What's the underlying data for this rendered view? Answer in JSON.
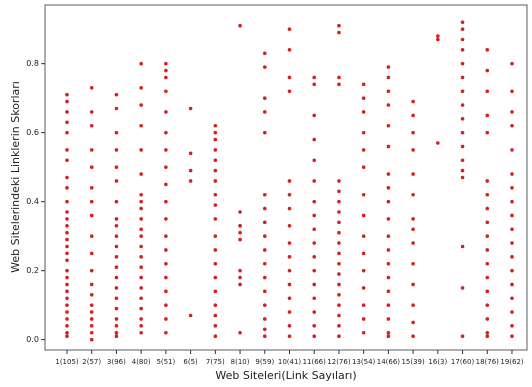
{
  "chart_data": {
    "type": "strip",
    "x_label": "Web Siteleri(Link Sayıları)",
    "y_label": "Web Sitelerindeki Linklerin Skorları",
    "color": "#d42020",
    "categories": [
      "1(105)",
      "2(57)",
      "3(96)",
      "4(80)",
      "5(51)",
      "6(5)",
      "7(75)",
      "8(10)",
      "9(59)",
      "10(41)",
      "11(66)",
      "12(76)",
      "13(54)",
      "14(66)",
      "15(39)",
      "16(3)",
      "17(60)",
      "18(76)",
      "19(62)"
    ],
    "values": [
      [
        0.71,
        0.69,
        0.66,
        0.63,
        0.6,
        0.55,
        0.52,
        0.47,
        0.44,
        0.4,
        0.37,
        0.35,
        0.33,
        0.31,
        0.29,
        0.27,
        0.25,
        0.23,
        0.2,
        0.18,
        0.16,
        0.14,
        0.12,
        0.1,
        0.08,
        0.06,
        0.04,
        0.02,
        0.01
      ],
      [
        0.73,
        0.66,
        0.62,
        0.55,
        0.5,
        0.44,
        0.4,
        0.36,
        0.3,
        0.25,
        0.2,
        0.16,
        0.13,
        0.1,
        0.08,
        0.06,
        0.04,
        0.02,
        0.0
      ],
      [
        0.71,
        0.67,
        0.6,
        0.55,
        0.5,
        0.46,
        0.4,
        0.35,
        0.33,
        0.3,
        0.27,
        0.24,
        0.21,
        0.18,
        0.15,
        0.12,
        0.09,
        0.06,
        0.04,
        0.02,
        0.01
      ],
      [
        0.8,
        0.73,
        0.68,
        0.62,
        0.55,
        0.48,
        0.42,
        0.4,
        0.38,
        0.35,
        0.32,
        0.3,
        0.27,
        0.24,
        0.21,
        0.18,
        0.15,
        0.12,
        0.09,
        0.06,
        0.04,
        0.02
      ],
      [
        0.8,
        0.78,
        0.76,
        0.72,
        0.66,
        0.6,
        0.55,
        0.5,
        0.45,
        0.4,
        0.35,
        0.3,
        0.26,
        0.22,
        0.18,
        0.14,
        0.1,
        0.06,
        0.02
      ],
      [
        0.67,
        0.54,
        0.49,
        0.46,
        0.07
      ],
      [
        0.62,
        0.6,
        0.58,
        0.55,
        0.52,
        0.49,
        0.46,
        0.42,
        0.39,
        0.35,
        0.3,
        0.26,
        0.22,
        0.18,
        0.14,
        0.1,
        0.07,
        0.04,
        0.01
      ],
      [
        0.91,
        0.37,
        0.33,
        0.31,
        0.29,
        0.2,
        0.18,
        0.16,
        0.02,
        0.33
      ],
      [
        0.83,
        0.79,
        0.7,
        0.66,
        0.6,
        0.42,
        0.38,
        0.34,
        0.3,
        0.26,
        0.22,
        0.18,
        0.14,
        0.1,
        0.06,
        0.03,
        0.01
      ],
      [
        0.9,
        0.84,
        0.76,
        0.72,
        0.46,
        0.42,
        0.38,
        0.33,
        0.28,
        0.24,
        0.2,
        0.16,
        0.12,
        0.08,
        0.04,
        0.01
      ],
      [
        0.76,
        0.74,
        0.65,
        0.58,
        0.52,
        0.46,
        0.4,
        0.36,
        0.32,
        0.28,
        0.24,
        0.2,
        0.16,
        0.12,
        0.08,
        0.04,
        0.01
      ],
      [
        0.91,
        0.89,
        0.76,
        0.74,
        0.46,
        0.43,
        0.4,
        0.37,
        0.34,
        0.31,
        0.28,
        0.25,
        0.22,
        0.19,
        0.16,
        0.13,
        0.1,
        0.07,
        0.04,
        0.01
      ],
      [
        0.74,
        0.7,
        0.66,
        0.6,
        0.55,
        0.5,
        0.42,
        0.36,
        0.3,
        0.25,
        0.2,
        0.15,
        0.1,
        0.06,
        0.02
      ],
      [
        0.79,
        0.76,
        0.72,
        0.68,
        0.62,
        0.56,
        0.48,
        0.44,
        0.4,
        0.35,
        0.3,
        0.26,
        0.22,
        0.18,
        0.14,
        0.1,
        0.06,
        0.02,
        0.01
      ],
      [
        0.69,
        0.65,
        0.6,
        0.55,
        0.48,
        0.42,
        0.35,
        0.32,
        0.28,
        0.22,
        0.16,
        0.1,
        0.05,
        0.01
      ],
      [
        0.88,
        0.87,
        0.57
      ],
      [
        0.92,
        0.9,
        0.87,
        0.84,
        0.8,
        0.76,
        0.72,
        0.68,
        0.64,
        0.6,
        0.56,
        0.52,
        0.49,
        0.47,
        0.27,
        0.15,
        0.01
      ],
      [
        0.84,
        0.78,
        0.72,
        0.65,
        0.6,
        0.46,
        0.42,
        0.38,
        0.34,
        0.3,
        0.26,
        0.22,
        0.18,
        0.14,
        0.1,
        0.06,
        0.02,
        0.01
      ],
      [
        0.8,
        0.72,
        0.66,
        0.62,
        0.55,
        0.48,
        0.44,
        0.4,
        0.36,
        0.32,
        0.28,
        0.24,
        0.2,
        0.16,
        0.12,
        0.08,
        0.04,
        0.01
      ]
    ],
    "ylim": [
      -0.03,
      0.97
    ],
    "yticks": [
      {
        "value": 0,
        "label": "0.0"
      },
      {
        "value": 0.2,
        "label": "0.2"
      },
      {
        "value": 0.4,
        "label": "0.4"
      },
      {
        "value": 0.6,
        "label": "0.6"
      },
      {
        "value": 0.8,
        "label": "0.8"
      }
    ]
  }
}
